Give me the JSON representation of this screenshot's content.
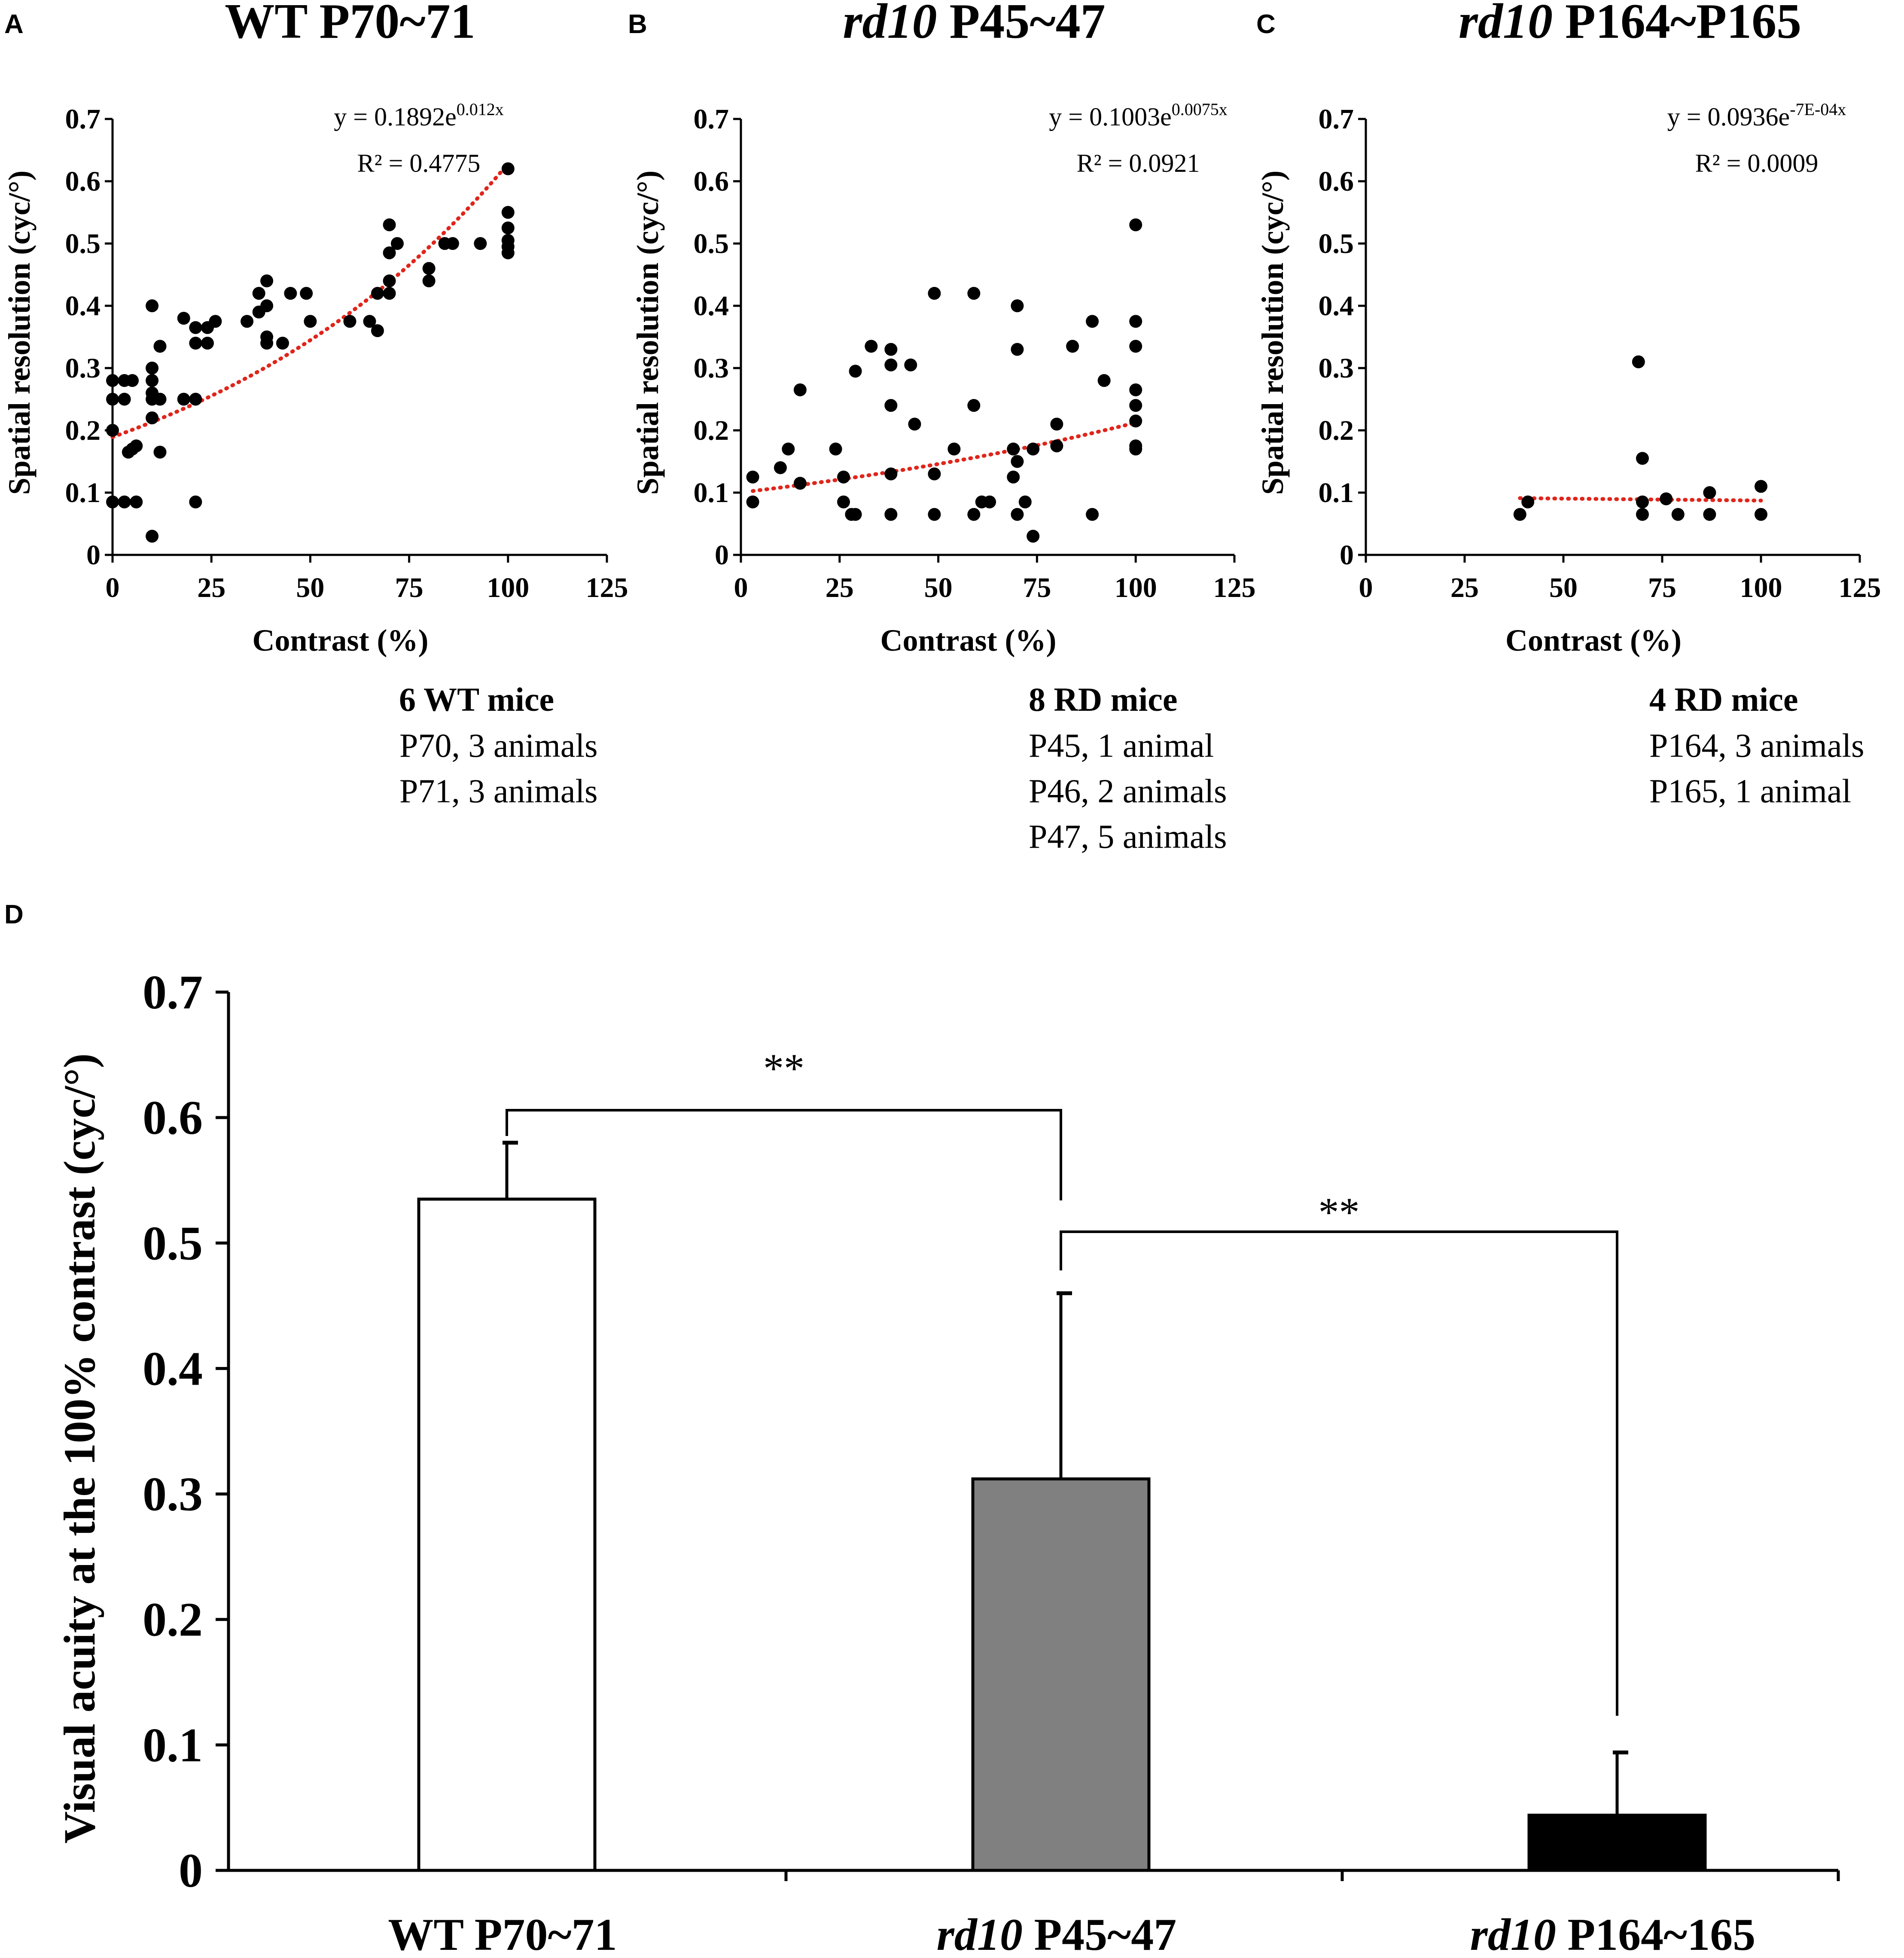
{
  "colors": {
    "trend": "#E0251B",
    "points": "#000000",
    "bar_wt": "#FFFFFF",
    "bar_p45": "#808080",
    "bar_p164": "#000000"
  },
  "chart_data": [
    {
      "id": "A",
      "type": "scatter",
      "letter": "A",
      "title": "WT P70~71",
      "title_italic": "",
      "title_rest": "WT P70~71",
      "xlabel": "Contrast (%)",
      "ylabel": "Spatial resolution (cyc/°)",
      "xlim": [
        0,
        125
      ],
      "ylim": [
        0,
        0.7
      ],
      "xticks": [
        "0",
        "25",
        "50",
        "75",
        "100",
        "125"
      ],
      "yticks": [
        "0",
        "0.1",
        "0.2",
        "0.3",
        "0.4",
        "0.5",
        "0.6",
        "0.7"
      ],
      "fit": {
        "a": 0.1892,
        "b": 0.012,
        "x_range": [
          0,
          100
        ]
      },
      "equation": {
        "lead": "y = 0.1892e",
        "exp": "0.012x",
        "r2": "R² = 0.4775"
      },
      "caption": {
        "head": "6 WT mice",
        "lines": [
          "P70, 3 animals",
          "P71, 3 animals"
        ]
      },
      "points": [
        [
          0,
          0.2
        ],
        [
          0,
          0.25
        ],
        [
          0,
          0.28
        ],
        [
          0,
          0.085
        ],
        [
          3,
          0.085
        ],
        [
          3,
          0.25
        ],
        [
          3,
          0.28
        ],
        [
          4,
          0.165
        ],
        [
          5,
          0.28
        ],
        [
          5,
          0.17
        ],
        [
          6,
          0.085
        ],
        [
          6,
          0.175
        ],
        [
          10,
          0.4
        ],
        [
          10,
          0.3
        ],
        [
          10,
          0.28
        ],
        [
          10,
          0.26
        ],
        [
          10,
          0.25
        ],
        [
          10,
          0.22
        ],
        [
          10,
          0.03
        ],
        [
          12,
          0.335
        ],
        [
          12,
          0.25
        ],
        [
          12,
          0.165
        ],
        [
          18,
          0.38
        ],
        [
          18,
          0.25
        ],
        [
          21,
          0.365
        ],
        [
          21,
          0.34
        ],
        [
          21,
          0.25
        ],
        [
          21,
          0.085
        ],
        [
          24,
          0.365
        ],
        [
          24,
          0.34
        ],
        [
          26,
          0.375
        ],
        [
          34,
          0.375
        ],
        [
          37,
          0.39
        ],
        [
          37,
          0.42
        ],
        [
          39,
          0.44
        ],
        [
          39,
          0.4
        ],
        [
          39,
          0.35
        ],
        [
          39,
          0.34
        ],
        [
          43,
          0.34
        ],
        [
          45,
          0.42
        ],
        [
          49,
          0.42
        ],
        [
          50,
          0.375
        ],
        [
          60,
          0.375
        ],
        [
          65,
          0.375
        ],
        [
          67,
          0.36
        ],
        [
          67,
          0.42
        ],
        [
          70,
          0.42
        ],
        [
          70,
          0.44
        ],
        [
          70,
          0.485
        ],
        [
          70,
          0.53
        ],
        [
          72,
          0.5
        ],
        [
          80,
          0.46
        ],
        [
          80,
          0.44
        ],
        [
          84,
          0.5
        ],
        [
          86,
          0.5
        ],
        [
          93,
          0.5
        ],
        [
          100,
          0.62
        ],
        [
          100,
          0.55
        ],
        [
          100,
          0.525
        ],
        [
          100,
          0.505
        ],
        [
          100,
          0.495
        ],
        [
          100,
          0.485
        ]
      ]
    },
    {
      "id": "B",
      "type": "scatter",
      "letter": "B",
      "title": "rd10 P45~47",
      "title_italic": "rd10",
      "title_rest": " P45~47",
      "xlabel": "Contrast (%)",
      "ylabel": "Spatial resolution (cyc/°)",
      "xlim": [
        0,
        125
      ],
      "ylim": [
        0,
        0.7
      ],
      "xticks": [
        "0",
        "25",
        "50",
        "75",
        "100",
        "125"
      ],
      "yticks": [
        "0",
        "0.1",
        "0.2",
        "0.3",
        "0.4",
        "0.5",
        "0.6",
        "0.7"
      ],
      "fit": {
        "a": 0.1003,
        "b": 0.0075,
        "x_range": [
          3,
          100
        ]
      },
      "equation": {
        "lead": "y = 0.1003e",
        "exp": "0.0075x",
        "r2": "R² = 0.0921"
      },
      "caption": {
        "head": "8 RD mice",
        "lines": [
          "P45, 1 animal",
          "P46, 2 animals",
          "P47, 5 animals"
        ]
      },
      "points": [
        [
          3,
          0.125
        ],
        [
          3,
          0.085
        ],
        [
          10,
          0.14
        ],
        [
          12,
          0.17
        ],
        [
          15,
          0.265
        ],
        [
          15,
          0.115
        ],
        [
          24,
          0.17
        ],
        [
          26,
          0.125
        ],
        [
          26,
          0.085
        ],
        [
          28,
          0.065
        ],
        [
          29,
          0.295
        ],
        [
          29,
          0.065
        ],
        [
          33,
          0.335
        ],
        [
          38,
          0.33
        ],
        [
          38,
          0.305
        ],
        [
          38,
          0.24
        ],
        [
          38,
          0.13
        ],
        [
          38,
          0.065
        ],
        [
          43,
          0.305
        ],
        [
          44,
          0.21
        ],
        [
          49,
          0.42
        ],
        [
          49,
          0.13
        ],
        [
          49,
          0.065
        ],
        [
          54,
          0.17
        ],
        [
          59,
          0.42
        ],
        [
          59,
          0.24
        ],
        [
          59,
          0.065
        ],
        [
          61,
          0.085
        ],
        [
          63,
          0.085
        ],
        [
          69,
          0.17
        ],
        [
          69,
          0.125
        ],
        [
          70,
          0.4
        ],
        [
          70,
          0.33
        ],
        [
          70,
          0.15
        ],
        [
          70,
          0.065
        ],
        [
          72,
          0.085
        ],
        [
          74,
          0.17
        ],
        [
          74,
          0.03
        ],
        [
          80,
          0.21
        ],
        [
          80,
          0.175
        ],
        [
          84,
          0.335
        ],
        [
          89,
          0.375
        ],
        [
          89,
          0.065
        ],
        [
          92,
          0.28
        ],
        [
          100,
          0.53
        ],
        [
          100,
          0.375
        ],
        [
          100,
          0.335
        ],
        [
          100,
          0.265
        ],
        [
          100,
          0.24
        ],
        [
          100,
          0.215
        ],
        [
          100,
          0.175
        ],
        [
          100,
          0.17
        ]
      ]
    },
    {
      "id": "C",
      "type": "scatter",
      "letter": "C",
      "title": "rd10 P164~P165",
      "title_italic": "rd10",
      "title_rest": " P164~P165",
      "xlabel": "Contrast (%)",
      "ylabel": "Spatial resolution (cyc/°)",
      "xlim": [
        0,
        125
      ],
      "ylim": [
        0,
        0.7
      ],
      "xticks": [
        "0",
        "25",
        "50",
        "75",
        "100",
        "125"
      ],
      "yticks": [
        "0",
        "0.1",
        "0.2",
        "0.3",
        "0.4",
        "0.5",
        "0.6",
        "0.7"
      ],
      "fit": {
        "a": 0.0936,
        "b": -0.0007,
        "x_range": [
          39,
          100
        ]
      },
      "equation": {
        "lead": "y = 0.0936e",
        "exp": "-7E-04x",
        "r2": "R² = 0.0009"
      },
      "caption": {
        "head": "4 RD mice",
        "lines": [
          "P164, 3 animals",
          "P165, 1 animal"
        ]
      },
      "points": [
        [
          39,
          0.065
        ],
        [
          41,
          0.085
        ],
        [
          69,
          0.31
        ],
        [
          70,
          0.155
        ],
        [
          70,
          0.085
        ],
        [
          70,
          0.065
        ],
        [
          76,
          0.09
        ],
        [
          79,
          0.065
        ],
        [
          87,
          0.1
        ],
        [
          87,
          0.065
        ],
        [
          100,
          0.11
        ],
        [
          100,
          0.065
        ]
      ]
    },
    {
      "id": "D",
      "type": "bar",
      "letter": "D",
      "ylabel": "Visual acuity at the 100% contrast (cyc/°)",
      "ylim": [
        0,
        0.7
      ],
      "yticks": [
        "0",
        "0.1",
        "0.2",
        "0.3",
        "0.4",
        "0.5",
        "0.6",
        "0.7"
      ],
      "categories": [
        {
          "italic": "",
          "rest": "WT P70~71",
          "label": "WT P70~71"
        },
        {
          "italic": "rd10",
          "rest": " P45~47",
          "label": "rd10 P45~47"
        },
        {
          "italic": "rd10",
          "rest": " P164~165",
          "label": "rd10 P164~165"
        }
      ],
      "values": [
        0.535,
        0.312,
        0.044
      ],
      "errors": [
        0.045,
        0.148,
        0.05
      ],
      "significance": [
        {
          "from": 0,
          "to": 1,
          "label": "**"
        },
        {
          "from": 1,
          "to": 2,
          "label": "**"
        }
      ]
    }
  ]
}
